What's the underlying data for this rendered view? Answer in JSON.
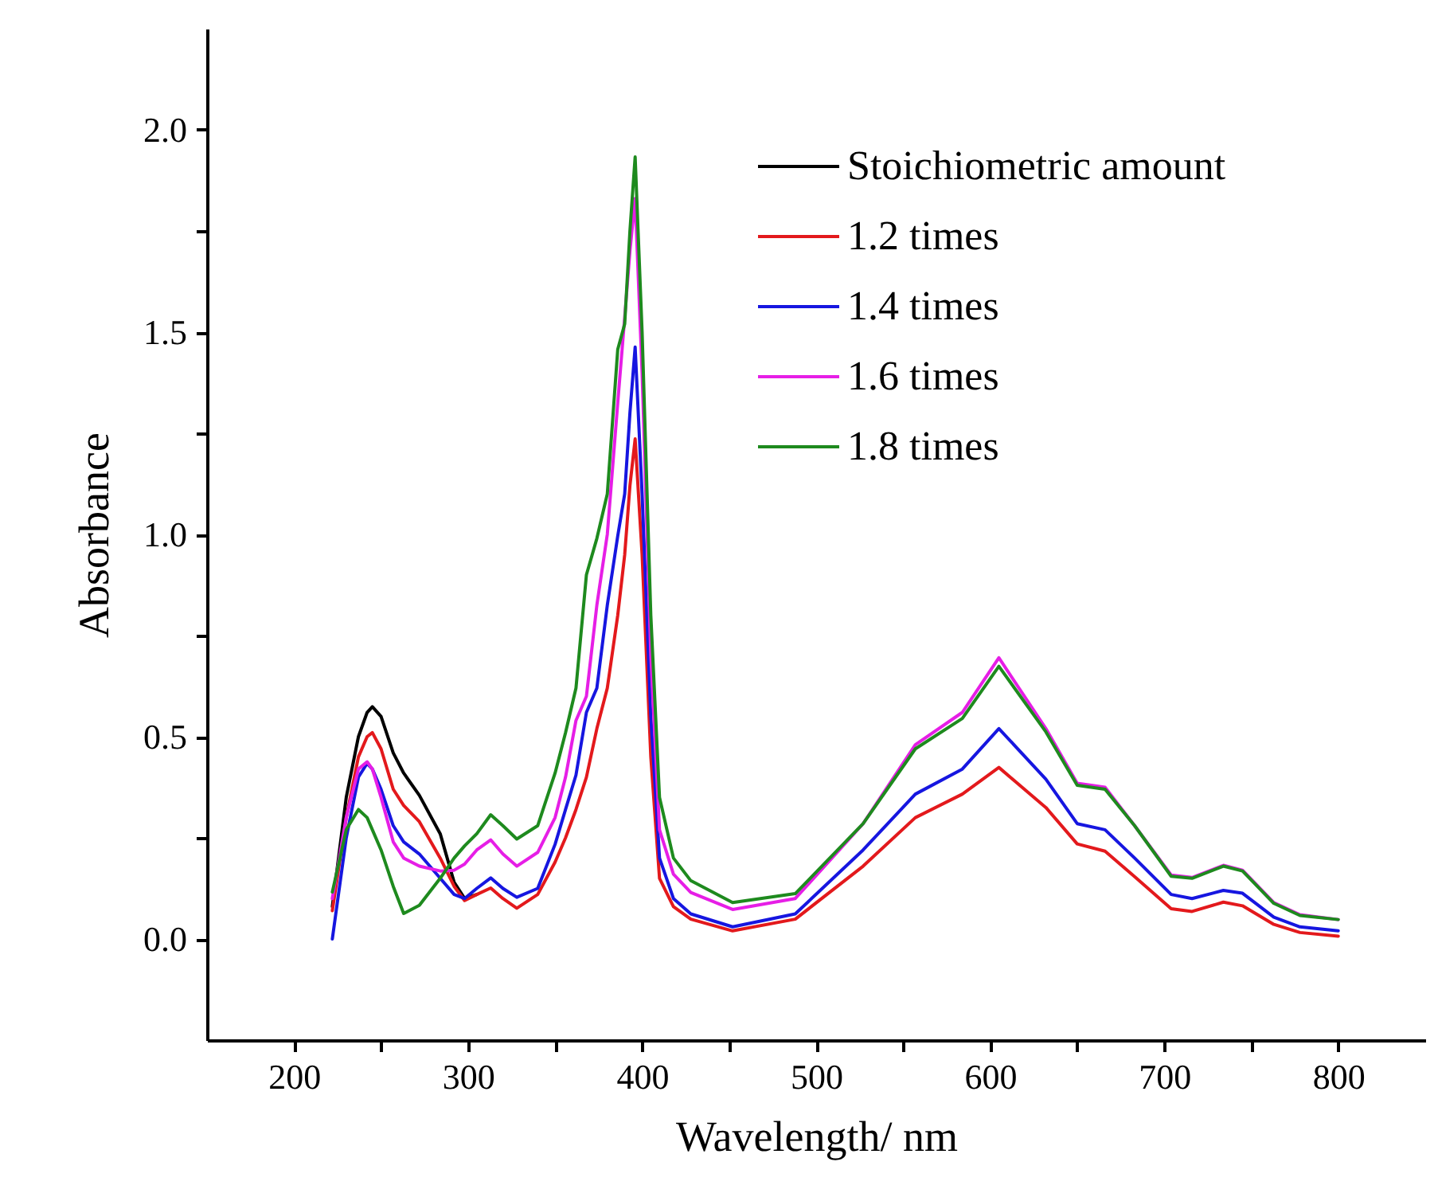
{
  "chart_data": {
    "type": "line",
    "xlabel": "Wavelength/ nm",
    "ylabel": "Absorbance",
    "xlim": [
      150,
      850
    ],
    "ylim": [
      -0.25,
      2.25
    ],
    "xticks": [
      200,
      {
        "value": 250,
        "label": null
      },
      300,
      {
        "value": 350,
        "label": null
      },
      400,
      {
        "value": 450,
        "label": null
      },
      500,
      {
        "value": 550,
        "label": null
      },
      600,
      {
        "value": 650,
        "label": null
      },
      700,
      {
        "value": 750,
        "label": null
      },
      800
    ],
    "yticks": [
      {
        "value": 0,
        "label": "0.0"
      },
      {
        "value": 0.25,
        "label": null
      },
      {
        "value": 0.5,
        "label": "0.5"
      },
      {
        "value": 0.75,
        "label": null
      },
      {
        "value": 1,
        "label": "1.0"
      },
      {
        "value": 1.25,
        "label": null
      },
      {
        "value": 1.5,
        "label": "1.5"
      },
      {
        "value": 1.75,
        "label": null
      },
      {
        "value": 2,
        "label": "2.0"
      }
    ],
    "grid": false,
    "legend": "top right",
    "marker": "none",
    "line_style": "solid",
    "x": [
      222,
      230,
      237,
      242,
      245,
      250,
      257,
      263,
      272,
      284,
      292,
      298,
      305,
      313,
      320,
      328,
      340,
      350,
      356,
      362,
      368,
      374,
      380,
      386,
      390,
      393,
      396,
      400,
      405,
      410,
      418,
      428,
      452,
      488,
      527,
      557,
      584,
      605,
      632,
      650,
      666,
      683,
      704,
      716,
      734,
      745,
      763,
      778,
      800
    ],
    "series": [
      {
        "name": "Stoichiometric amount",
        "color": "#000000",
        "values": [
          0.08,
          0.35,
          0.5,
          0.56,
          0.574,
          0.55,
          0.46,
          0.41,
          0.355,
          0.26,
          0.14,
          0.1,
          0.11,
          null,
          null,
          null,
          null,
          null,
          null,
          null,
          null,
          null,
          null,
          null,
          null,
          null,
          null,
          null,
          null,
          null,
          null,
          null,
          null,
          null,
          null,
          null,
          null,
          null,
          null,
          null,
          null,
          null,
          null,
          null,
          null,
          null,
          null,
          null,
          null
        ]
      },
      {
        "name": "1.2 times",
        "color": "#e3191c",
        "values": [
          0.07,
          0.3,
          0.45,
          0.5,
          0.51,
          0.47,
          0.37,
          0.33,
          0.29,
          0.2,
          0.13,
          0.095,
          0.11,
          0.126,
          0.1,
          0.076,
          0.11,
          0.19,
          0.25,
          0.32,
          0.4,
          0.52,
          0.62,
          0.8,
          0.95,
          1.12,
          1.236,
          0.95,
          0.45,
          0.15,
          0.08,
          0.049,
          0.02,
          0.049,
          0.18,
          0.3,
          0.358,
          0.424,
          0.325,
          0.235,
          0.217,
          0.154,
          0.075,
          0.068,
          0.091,
          0.082,
          0.036,
          0.016,
          0.007
        ]
      },
      {
        "name": "1.4 times",
        "color": "#1616e0",
        "values": [
          0.0,
          0.25,
          0.4,
          0.434,
          0.42,
          0.37,
          0.28,
          0.24,
          0.21,
          0.15,
          0.11,
          0.1,
          0.125,
          0.151,
          0.125,
          0.103,
          0.125,
          0.234,
          0.32,
          0.405,
          0.56,
          0.62,
          0.825,
          0.996,
          1.1,
          1.3,
          1.463,
          1.1,
          0.55,
          0.2,
          0.1,
          0.062,
          0.03,
          0.062,
          0.22,
          0.358,
          0.42,
          0.52,
          0.395,
          0.285,
          0.27,
          0.2,
          0.11,
          0.1,
          0.12,
          0.113,
          0.054,
          0.03,
          0.02
        ]
      },
      {
        "name": "1.6 times",
        "color": "#e61ee6",
        "values": [
          0.1,
          0.3,
          0.42,
          0.438,
          0.42,
          0.35,
          0.24,
          0.2,
          0.18,
          0.168,
          0.17,
          0.185,
          0.22,
          0.245,
          0.21,
          0.18,
          0.214,
          0.3,
          0.4,
          0.54,
          0.6,
          0.825,
          1.0,
          1.325,
          1.536,
          1.7,
          1.83,
          1.4,
          0.7,
          0.27,
          0.16,
          0.115,
          0.073,
          0.1,
          0.285,
          0.48,
          0.56,
          0.695,
          0.52,
          0.385,
          0.375,
          0.28,
          0.158,
          0.152,
          0.182,
          0.17,
          0.09,
          0.06,
          0.048
        ]
      },
      {
        "name": "1.8 times",
        "color": "#1e8a1e",
        "values": [
          0.116,
          0.27,
          0.32,
          0.3,
          0.27,
          0.22,
          0.13,
          0.063,
          0.083,
          0.15,
          0.2,
          0.23,
          0.26,
          0.307,
          0.28,
          0.247,
          0.28,
          0.41,
          0.51,
          0.62,
          0.9,
          0.99,
          1.1,
          1.457,
          1.52,
          1.75,
          1.933,
          1.5,
          0.8,
          0.35,
          0.2,
          0.144,
          0.09,
          0.112,
          0.285,
          0.47,
          0.545,
          0.674,
          0.512,
          0.38,
          0.37,
          0.28,
          0.155,
          0.15,
          0.18,
          0.168,
          0.088,
          0.058,
          0.048
        ]
      }
    ]
  }
}
